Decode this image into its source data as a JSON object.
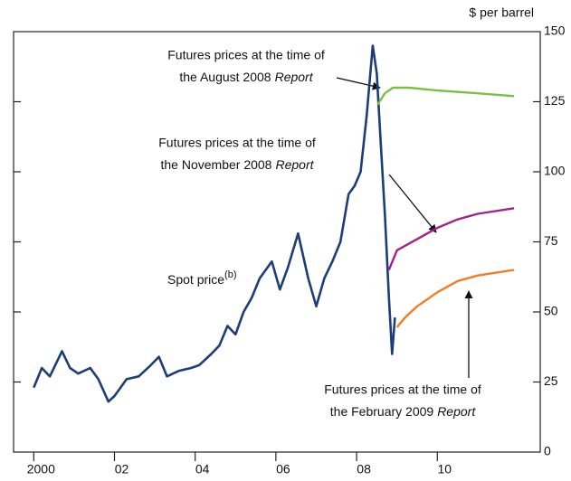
{
  "chart_data": {
    "type": "line",
    "unit_label": "$ per barrel",
    "xlim": [
      1999.5,
      2012.55
    ],
    "xticks": [
      2000,
      {
        "value": 2002,
        "label": "02"
      },
      {
        "value": 2004,
        "label": "04"
      },
      {
        "value": 2006,
        "label": "06"
      },
      {
        "value": 2008,
        "label": "08"
      },
      {
        "value": 2010,
        "label": "10"
      }
    ],
    "ylim": [
      0,
      150
    ],
    "yticks": [
      0,
      25,
      50,
      75,
      100,
      125,
      150
    ],
    "y_axis_side": "right",
    "grid": false,
    "series": [
      {
        "name": "Spot price",
        "name_sup": "(b)",
        "color": "#1d3d78",
        "x": [
          2000.0,
          2000.2,
          2000.4,
          2000.7,
          2000.9,
          2001.1,
          2001.4,
          2001.6,
          2001.85,
          2002.0,
          2002.3,
          2002.6,
          2002.9,
          2003.1,
          2003.3,
          2003.6,
          2003.9,
          2004.1,
          2004.4,
          2004.6,
          2004.8,
          2005.0,
          2005.2,
          2005.4,
          2005.6,
          2005.9,
          2006.1,
          2006.3,
          2006.55,
          2006.8,
          2007.0,
          2007.2,
          2007.4,
          2007.6,
          2007.8,
          2007.95,
          2008.1,
          2008.25,
          2008.4,
          2008.5,
          2008.6,
          2008.7,
          2008.8,
          2008.88,
          2008.95
        ],
        "values": [
          23,
          30,
          27,
          36,
          30,
          28,
          30,
          26,
          18,
          20,
          26,
          27,
          31,
          34,
          27,
          29,
          30,
          31,
          35,
          38,
          45,
          42,
          50,
          55,
          62,
          68,
          58,
          66,
          78,
          62,
          52,
          62,
          68,
          75,
          92,
          95,
          100,
          120,
          145,
          135,
          110,
          85,
          55,
          35,
          48
        ]
      },
      {
        "color": "#7ac142",
        "x": [
          2008.52,
          2008.7,
          2008.9,
          2009.3,
          2010.0,
          2011.0,
          2011.9
        ],
        "values": [
          124,
          128,
          130,
          130,
          129,
          128,
          127
        ]
      },
      {
        "color": "#a3218f",
        "x": [
          2008.8,
          2009.0,
          2009.5,
          2010.0,
          2010.5,
          2011.0,
          2011.9
        ],
        "values": [
          65,
          72,
          76,
          80,
          83,
          85,
          87
        ]
      },
      {
        "color": "#f47b20",
        "x": [
          2009.0,
          2009.2,
          2009.5,
          2010.0,
          2010.5,
          2011.0,
          2011.9
        ],
        "values": [
          44.5,
          48,
          52,
          57,
          61,
          63,
          65
        ]
      }
    ],
    "annotations": [
      {
        "lines": [
          "Futures prices at the time of",
          "the August 2008"
        ],
        "italic": "Report"
      },
      {
        "lines": [
          "Futures prices at the time of",
          "the November 2008"
        ],
        "italic": "Report"
      },
      {
        "lines": [
          "Futures prices at the time of",
          "the February 2009"
        ],
        "italic": "Report"
      }
    ]
  }
}
